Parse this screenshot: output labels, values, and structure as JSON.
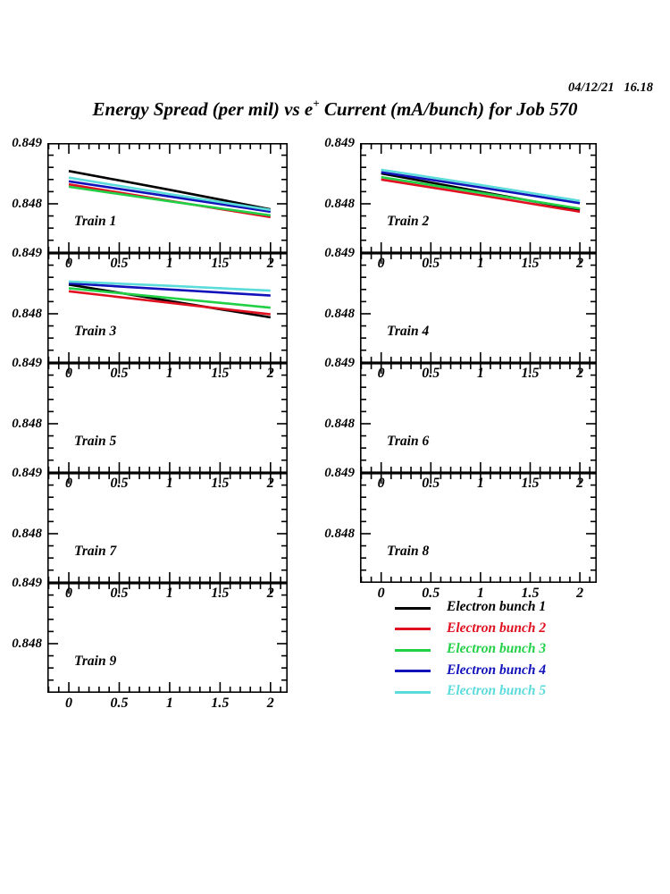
{
  "header": {
    "timestamp": "04/12/21   16.18",
    "title_part1": "Energy Spread (per mil) vs e",
    "title_sup": "+",
    "title_part2": " Current (mA/bunch) for Job 570"
  },
  "colors": {
    "black": "#000000",
    "red": "#e01020",
    "green": "#22d046",
    "blue": "#1212bb",
    "cyan": "#5cdbdb"
  },
  "chart_data": {
    "type": "line",
    "title": "Energy Spread (per mil) vs e+ Current (mA/bunch) for Job 570",
    "x_axis": {
      "range": [
        -0.213,
        2.17
      ],
      "major_ticks": [
        0,
        0.5,
        1,
        1.5,
        2
      ],
      "tick_labels": [
        "0",
        "0.5",
        "1",
        "1.5",
        "2"
      ],
      "minor_step": 0.1
    },
    "y_axis": {
      "range": [
        0.84719,
        0.849
      ],
      "major_tick_values": [
        0.849,
        0.848
      ],
      "tick_labels": [
        "0.849",
        "0.848"
      ],
      "minor_step": 0.0002
    },
    "panels": [
      {
        "label": "Train 1",
        "series": [
          {
            "name": "Electron bunch 1",
            "color": "#000000",
            "points": [
              [
                0,
                0.84854
              ],
              [
                1,
                0.84823
              ],
              [
                2,
                0.84791
              ]
            ]
          },
          {
            "name": "Electron bunch 2",
            "color": "#e01020",
            "points": [
              [
                0,
                0.84832
              ],
              [
                1,
                0.84805
              ],
              [
                2,
                0.84778
              ]
            ]
          },
          {
            "name": "Electron bunch 3",
            "color": "#22d046",
            "points": [
              [
                0,
                0.84828
              ],
              [
                1,
                0.84804
              ],
              [
                2,
                0.84781
              ]
            ]
          },
          {
            "name": "Electron bunch 4",
            "color": "#1212bb",
            "points": [
              [
                0,
                0.84837
              ],
              [
                1,
                0.84812
              ],
              [
                2,
                0.84787
              ]
            ]
          },
          {
            "name": "Electron bunch 5",
            "color": "#5cdbdb",
            "points": [
              [
                0,
                0.84843
              ],
              [
                1,
                0.84816
              ],
              [
                2,
                0.8479
              ]
            ]
          }
        ]
      },
      {
        "label": "Train 2",
        "series": [
          {
            "name": "Electron bunch 1",
            "color": "#000000",
            "points": [
              [
                0,
                0.8485
              ],
              [
                1,
                0.8482
              ],
              [
                2,
                0.8479
              ]
            ]
          },
          {
            "name": "Electron bunch 2",
            "color": "#e01020",
            "points": [
              [
                0,
                0.8484
              ],
              [
                1,
                0.84814
              ],
              [
                2,
                0.84787
              ]
            ]
          },
          {
            "name": "Electron bunch 3",
            "color": "#22d046",
            "points": [
              [
                0,
                0.84844
              ],
              [
                1,
                0.84818
              ],
              [
                2,
                0.84792
              ]
            ]
          },
          {
            "name": "Electron bunch 4",
            "color": "#1212bb",
            "points": [
              [
                0,
                0.84852
              ],
              [
                1,
                0.84827
              ],
              [
                2,
                0.84801
              ]
            ]
          },
          {
            "name": "Electron bunch 5",
            "color": "#5cdbdb",
            "points": [
              [
                0,
                0.84856
              ],
              [
                1,
                0.84831
              ],
              [
                2,
                0.84805
              ]
            ]
          }
        ]
      },
      {
        "label": "Train 3",
        "series": [
          {
            "name": "Electron bunch 1",
            "color": "#000000",
            "points": [
              [
                0,
                0.84848
              ],
              [
                1,
                0.84821
              ],
              [
                2,
                0.84794
              ]
            ]
          },
          {
            "name": "Electron bunch 2",
            "color": "#e01020",
            "points": [
              [
                0,
                0.84837
              ],
              [
                1,
                0.84818
              ],
              [
                2,
                0.84799
              ]
            ]
          },
          {
            "name": "Electron bunch 3",
            "color": "#22d046",
            "points": [
              [
                0,
                0.84842
              ],
              [
                1,
                0.84826
              ],
              [
                2,
                0.8481
              ]
            ]
          },
          {
            "name": "Electron bunch 4",
            "color": "#1212bb",
            "points": [
              [
                0,
                0.8485
              ],
              [
                1,
                0.8484
              ],
              [
                2,
                0.8483
              ]
            ]
          },
          {
            "name": "Electron bunch 5",
            "color": "#5cdbdb",
            "points": [
              [
                0,
                0.84853
              ],
              [
                1,
                0.84846
              ],
              [
                2,
                0.84838
              ]
            ]
          }
        ]
      },
      {
        "label": "Train 4",
        "series": []
      },
      {
        "label": "Train 5",
        "series": []
      },
      {
        "label": "Train 6",
        "series": []
      },
      {
        "label": "Train 7",
        "series": []
      },
      {
        "label": "Train 8",
        "series": []
      },
      {
        "label": "Train 9",
        "series": []
      }
    ]
  },
  "legend": {
    "entries": [
      {
        "label": "Electron bunch 1",
        "color": "#000000"
      },
      {
        "label": "Electron bunch 2",
        "color": "#e01020"
      },
      {
        "label": "Electron bunch 3",
        "color": "#22d046"
      },
      {
        "label": "Electron bunch 4",
        "color": "#1212bb"
      },
      {
        "label": "Electron bunch 5",
        "color": "#5cdbdb"
      }
    ]
  }
}
